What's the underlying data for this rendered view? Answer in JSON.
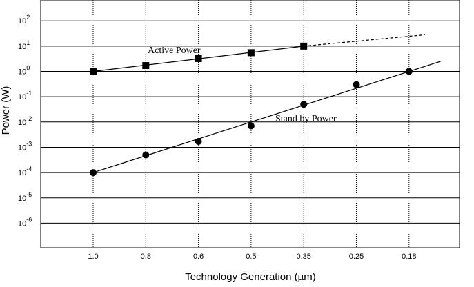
{
  "chart_data": {
    "type": "line",
    "xlabel": "Technology Generation (µm)",
    "ylabel": "Power (W)",
    "y_scale": "log",
    "ylim": [
      1e-07,
      1000
    ],
    "grid": {
      "vertical": true,
      "vertical_style": "dotted",
      "horizontal": true
    },
    "categories": [
      "1.0",
      "0.8",
      "0.6",
      "0.5",
      "0.35",
      "0.25",
      "0.18"
    ],
    "y_ticks": [
      {
        "base": "10",
        "exp": "2"
      },
      {
        "base": "10",
        "exp": "1"
      },
      {
        "base": "10",
        "exp": "0"
      },
      {
        "base": "10",
        "exp": "-1"
      },
      {
        "base": "10",
        "exp": "-2"
      },
      {
        "base": "10",
        "exp": "-3"
      },
      {
        "base": "10",
        "exp": "-4"
      },
      {
        "base": "10",
        "exp": "-5"
      },
      {
        "base": "10",
        "exp": "-6"
      }
    ],
    "y_tick_values": [
      100,
      10,
      1,
      0.1,
      0.01,
      0.001,
      0.0001,
      1e-05,
      1e-06
    ],
    "series": [
      {
        "name": "Active Power",
        "marker": "square",
        "points": [
          {
            "x": "1.0",
            "y": 1
          },
          {
            "x": "0.8",
            "y": 1.7
          },
          {
            "x": "0.6",
            "y": 3.2
          },
          {
            "x": "0.5",
            "y": 5.5
          },
          {
            "x": "0.35",
            "y": 10
          }
        ],
        "fit_line": [
          {
            "x": "1.0",
            "y": 1
          },
          {
            "x": "0.35",
            "y": 10
          }
        ],
        "extrapolation": {
          "style": "dashed",
          "from": {
            "x": "0.35",
            "y": 10
          },
          "to": {
            "x": 6.3,
            "y": 28
          }
        }
      },
      {
        "name": "Stand by Power",
        "marker": "circle",
        "points": [
          {
            "x": "1.0",
            "y": 0.0001
          },
          {
            "x": "0.8",
            "y": 0.0005
          },
          {
            "x": "0.6",
            "y": 0.0017
          },
          {
            "x": "0.5",
            "y": 0.007
          },
          {
            "x": "0.35",
            "y": 0.05
          },
          {
            "x": "0.25",
            "y": 0.3
          },
          {
            "x": "0.18",
            "y": 1
          }
        ],
        "fit_line": [
          {
            "x": "1.0",
            "y": 0.0001
          },
          {
            "x": 6.6,
            "y": 2.5
          }
        ]
      }
    ],
    "annotations": [
      {
        "text": "Active Power",
        "series": "Active Power"
      },
      {
        "text": "Stand by Power",
        "series": "Stand by Power"
      }
    ]
  }
}
